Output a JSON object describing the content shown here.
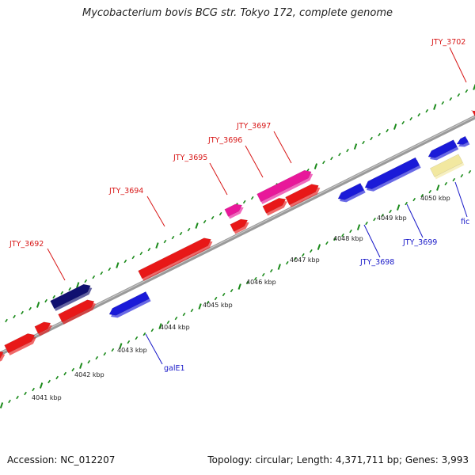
{
  "title": "Mycobacterium bovis BCG str. Tokyo 172, complete genome",
  "footer": {
    "accession": "Accession: NC_012207",
    "summary": "Topology: circular; Length: 4,371,711 bp; Genes: 3,993"
  },
  "colors": {
    "background": "#ffffff",
    "backbone": "#8a8a8a",
    "tick": "#1a8a1a",
    "forward_gene_label": "#d81818",
    "reverse_gene_label": "#1818c8"
  },
  "scale": {
    "unit": "kbp",
    "labels": [
      "4041 kbp",
      "4042 kbp",
      "4043 kbp",
      "4044 kbp",
      "4045 kbp",
      "4046 kbp",
      "4047 kbp",
      "4048 kbp",
      "4049 kbp",
      "4050 kbp"
    ]
  },
  "gene_labels_forward": [
    "JTY_3692",
    "JTY_3694",
    "JTY_3695",
    "JTY_3696",
    "JTY_3697",
    "JTY_3702"
  ],
  "gene_labels_reverse": [
    "galE1",
    "JTY_3698",
    "JTY_3699",
    "fic"
  ],
  "feature_colors": {
    "cds": "#e81818",
    "highlight": "#e8189a",
    "dark": "#101070",
    "reverse": "#1a1ad8",
    "other": "#f2e8a0"
  }
}
